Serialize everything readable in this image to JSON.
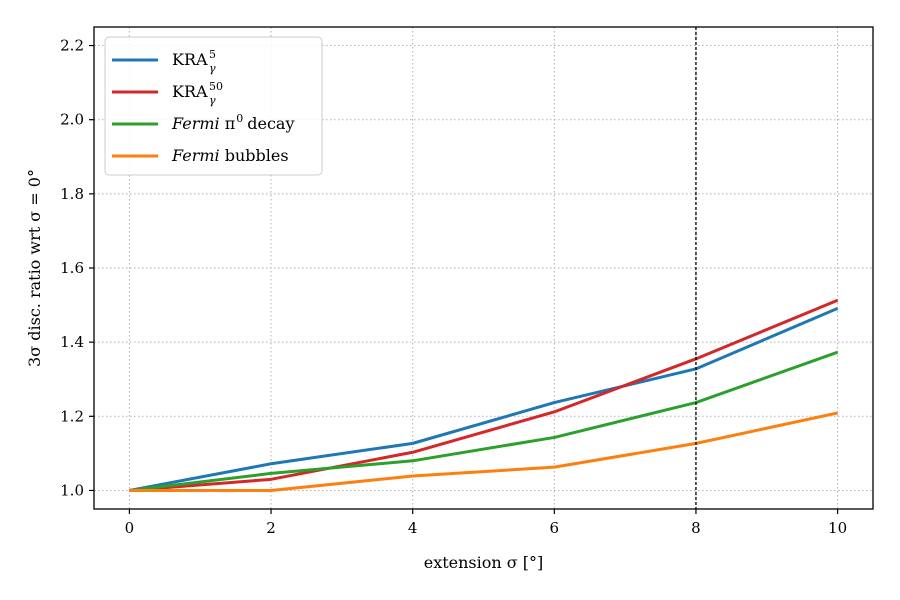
{
  "chart_data": {
    "type": "line",
    "xlabel": "extension σ [°]",
    "ylabel": "3σ disc. ratio wrt σ = 0°",
    "xlim": [
      -0.5,
      10.5
    ],
    "ylim": [
      0.95,
      2.25
    ],
    "x_ticks": [
      0,
      2,
      4,
      6,
      8,
      10
    ],
    "y_ticks": [
      1.0,
      1.2,
      1.4,
      1.6,
      1.8,
      2.0,
      2.2
    ],
    "grid": true,
    "legend_position": "top-left",
    "vline": 8,
    "x": [
      0,
      2,
      4,
      6,
      8,
      10
    ],
    "series": [
      {
        "name": "KRA",
        "sub": "γ",
        "sup": "5",
        "italic_prefix": "",
        "rest": "",
        "color": "#1f77b4",
        "values": [
          1.0,
          1.072,
          1.127,
          1.237,
          1.328,
          1.491
        ]
      },
      {
        "name": "KRA",
        "sub": "γ",
        "sup": "50",
        "italic_prefix": "",
        "rest": "",
        "color": "#d62728",
        "values": [
          1.0,
          1.03,
          1.103,
          1.212,
          1.355,
          1.513
        ]
      },
      {
        "name": "",
        "sub": "",
        "sup": "0",
        "italic_prefix": "Fermi",
        "rest": " π",
        "rest_after": " decay",
        "color": "#2ca02c",
        "values": [
          1.0,
          1.046,
          1.08,
          1.143,
          1.237,
          1.373
        ]
      },
      {
        "name": "",
        "sub": "",
        "sup": "",
        "italic_prefix": "Fermi",
        "rest": " bubbles",
        "rest_after": "",
        "color": "#ff7f0e",
        "values": [
          1.0,
          1.0,
          1.039,
          1.063,
          1.127,
          1.209
        ]
      }
    ]
  }
}
